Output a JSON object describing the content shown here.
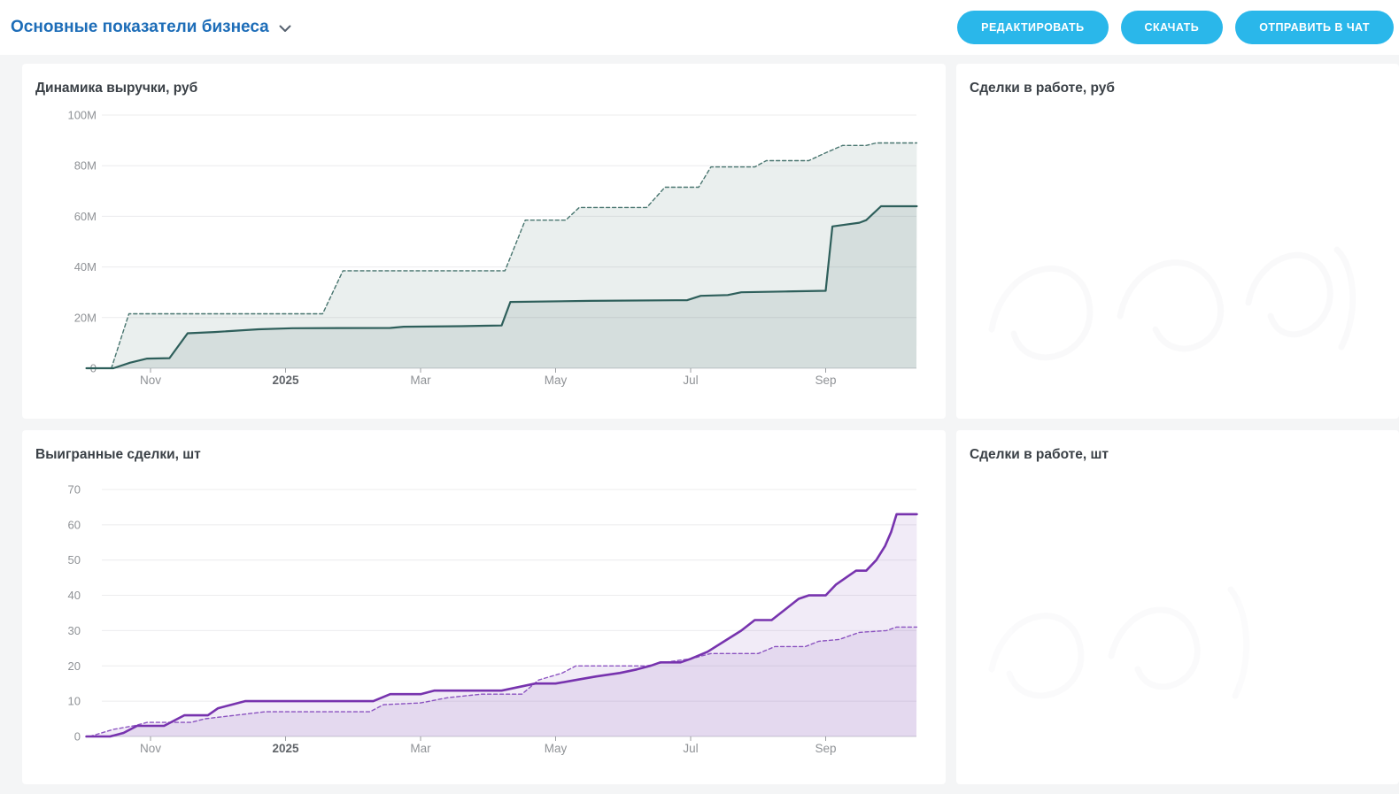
{
  "header": {
    "title": "Основные показатели бизнеса",
    "title_color": "#1d6db8",
    "accent_color": "#2ab7ea",
    "buttons": [
      {
        "id": "edit",
        "label": "РЕДАКТИРОВАТЬ"
      },
      {
        "id": "download",
        "label": "СКАЧАТЬ"
      },
      {
        "id": "send-to-chat",
        "label": "ОТПРАВИТЬ В ЧАТ"
      }
    ]
  },
  "panels": [
    {
      "id": "revenue",
      "title": "Динамика выручки, руб"
    },
    {
      "id": "deals-rub",
      "title": "Сделки в работе, руб"
    },
    {
      "id": "won-deals",
      "title": "Выигранные сделки, шт"
    },
    {
      "id": "deals-qty",
      "title": "Сделки в работе, шт"
    }
  ],
  "chart_data": [
    {
      "id": "revenue",
      "type": "area",
      "title": "Динамика выручки, руб",
      "x_axis": {
        "unit": "months, 0 = Oct 2024",
        "ticks": [
          {
            "m": 1,
            "label": "Nov"
          },
          {
            "m": 3,
            "label": "2025",
            "bold": true
          },
          {
            "m": 5,
            "label": "Mar"
          },
          {
            "m": 7,
            "label": "May"
          },
          {
            "m": 9,
            "label": "Jul"
          },
          {
            "m": 11,
            "label": "Sep"
          }
        ]
      },
      "y_axis": {
        "range": [
          0,
          100
        ],
        "unit": "M rub",
        "ticks": [
          {
            "v": 0,
            "label": "0"
          },
          {
            "v": 20,
            "label": "20M"
          },
          {
            "v": 40,
            "label": "40M"
          },
          {
            "v": 60,
            "label": "60M"
          },
          {
            "v": 80,
            "label": "80M"
          },
          {
            "v": 100,
            "label": "100M"
          }
        ]
      },
      "grid": true,
      "series": [
        {
          "name": "plan-dashed",
          "style": "dashed",
          "color": "#48756f",
          "width": 1.4,
          "fill": "rgba(46,95,91,0.10)",
          "points": [
            [
              0.05,
              0
            ],
            [
              0.42,
              0
            ],
            [
              0.68,
              21.5
            ],
            [
              3.55,
              21.5
            ],
            [
              3.85,
              38.5
            ],
            [
              6.25,
              38.5
            ],
            [
              6.55,
              58.5
            ],
            [
              7.15,
              58.5
            ],
            [
              7.35,
              63.5
            ],
            [
              8.35,
              63.5
            ],
            [
              8.62,
              71.5
            ],
            [
              9.12,
              71.5
            ],
            [
              9.3,
              79.5
            ],
            [
              9.95,
              79.5
            ],
            [
              10.12,
              82
            ],
            [
              10.75,
              82
            ],
            [
              10.95,
              84.5
            ],
            [
              11.25,
              88
            ],
            [
              11.6,
              88
            ],
            [
              11.75,
              89
            ],
            [
              12.35,
              89
            ]
          ]
        },
        {
          "name": "fact-solid",
          "style": "solid",
          "color": "#2e5f5b",
          "width": 2.2,
          "fill": "rgba(46,95,91,0.11)",
          "points": [
            [
              0.05,
              0
            ],
            [
              0.45,
              0
            ],
            [
              0.7,
              2.2
            ],
            [
              0.95,
              3.8
            ],
            [
              1.28,
              4
            ],
            [
              1.55,
              13.8
            ],
            [
              1.95,
              14.3
            ],
            [
              2.6,
              15.4
            ],
            [
              3.1,
              15.8
            ],
            [
              4.55,
              15.9
            ],
            [
              4.75,
              16.4
            ],
            [
              5.6,
              16.6
            ],
            [
              5.95,
              16.8
            ],
            [
              6.2,
              16.9
            ],
            [
              6.33,
              26.2
            ],
            [
              7.5,
              26.6
            ],
            [
              8.95,
              26.9
            ],
            [
              9.15,
              28.6
            ],
            [
              9.55,
              28.9
            ],
            [
              9.75,
              30
            ],
            [
              10.4,
              30.3
            ],
            [
              11.0,
              30.6
            ],
            [
              11.1,
              56
            ],
            [
              11.5,
              57.5
            ],
            [
              11.6,
              58.5
            ],
            [
              11.82,
              64
            ],
            [
              12.35,
              64
            ]
          ]
        }
      ]
    },
    {
      "id": "won-deals",
      "type": "area",
      "title": "Выигранные сделки, шт",
      "x_axis": {
        "unit": "months, 0 = Oct 2024",
        "ticks": [
          {
            "m": 1,
            "label": "Nov"
          },
          {
            "m": 3,
            "label": "2025",
            "bold": true
          },
          {
            "m": 5,
            "label": "Mar"
          },
          {
            "m": 7,
            "label": "May"
          },
          {
            "m": 9,
            "label": "Jul"
          },
          {
            "m": 11,
            "label": "Sep"
          }
        ]
      },
      "y_axis": {
        "range": [
          0,
          70
        ],
        "unit": "шт",
        "ticks": [
          {
            "v": 0,
            "label": "0"
          },
          {
            "v": 10,
            "label": "10"
          },
          {
            "v": 20,
            "label": "20"
          },
          {
            "v": 30,
            "label": "30"
          },
          {
            "v": 40,
            "label": "40"
          },
          {
            "v": 50,
            "label": "50"
          },
          {
            "v": 60,
            "label": "60"
          },
          {
            "v": 70,
            "label": "70"
          }
        ]
      },
      "grid": true,
      "series": [
        {
          "name": "plan-dashed",
          "style": "dashed",
          "color": "#8d55c2",
          "width": 1.4,
          "fill": "rgba(124,66,176,0.105)",
          "points": [
            [
              0.1,
              0
            ],
            [
              0.45,
              2
            ],
            [
              0.75,
              3
            ],
            [
              0.95,
              4
            ],
            [
              1.6,
              4
            ],
            [
              1.8,
              5
            ],
            [
              2.25,
              6
            ],
            [
              2.7,
              7
            ],
            [
              4.25,
              7
            ],
            [
              4.45,
              9
            ],
            [
              5.0,
              9.5
            ],
            [
              5.4,
              11
            ],
            [
              5.9,
              12
            ],
            [
              6.5,
              12
            ],
            [
              6.75,
              16
            ],
            [
              7.1,
              18
            ],
            [
              7.3,
              20
            ],
            [
              8.35,
              20
            ],
            [
              8.6,
              21
            ],
            [
              9.0,
              22
            ],
            [
              9.3,
              23.5
            ],
            [
              10.0,
              23.5
            ],
            [
              10.25,
              25.5
            ],
            [
              10.7,
              25.5
            ],
            [
              10.9,
              27
            ],
            [
              11.2,
              27.5
            ],
            [
              11.5,
              29.5
            ],
            [
              11.9,
              30
            ],
            [
              12.05,
              31
            ],
            [
              12.35,
              31
            ]
          ]
        },
        {
          "name": "fact-solid",
          "style": "solid",
          "color": "#7733ae",
          "width": 2.6,
          "fill": "rgba(124,66,176,0.105)",
          "points": [
            [
              0.05,
              0
            ],
            [
              0.4,
              0
            ],
            [
              0.6,
              1
            ],
            [
              0.8,
              3
            ],
            [
              1.2,
              3
            ],
            [
              1.5,
              6
            ],
            [
              1.85,
              6
            ],
            [
              2.0,
              8
            ],
            [
              2.2,
              9
            ],
            [
              2.4,
              10
            ],
            [
              4.3,
              10
            ],
            [
              4.55,
              12
            ],
            [
              5.0,
              12
            ],
            [
              5.2,
              13
            ],
            [
              6.2,
              13
            ],
            [
              6.45,
              14
            ],
            [
              6.7,
              15
            ],
            [
              7.0,
              15
            ],
            [
              7.3,
              16
            ],
            [
              7.6,
              17
            ],
            [
              7.95,
              18
            ],
            [
              8.2,
              19
            ],
            [
              8.4,
              20
            ],
            [
              8.55,
              21
            ],
            [
              8.85,
              21
            ],
            [
              9.0,
              22
            ],
            [
              9.25,
              24
            ],
            [
              9.5,
              27
            ],
            [
              9.75,
              30
            ],
            [
              9.95,
              33
            ],
            [
              10.2,
              33
            ],
            [
              10.4,
              36
            ],
            [
              10.6,
              39
            ],
            [
              10.75,
              40
            ],
            [
              11.0,
              40
            ],
            [
              11.15,
              43
            ],
            [
              11.3,
              45
            ],
            [
              11.45,
              47
            ],
            [
              11.6,
              47
            ],
            [
              11.75,
              50
            ],
            [
              11.88,
              54
            ],
            [
              11.97,
              58
            ],
            [
              12.05,
              63
            ],
            [
              12.35,
              63
            ]
          ]
        }
      ]
    }
  ]
}
